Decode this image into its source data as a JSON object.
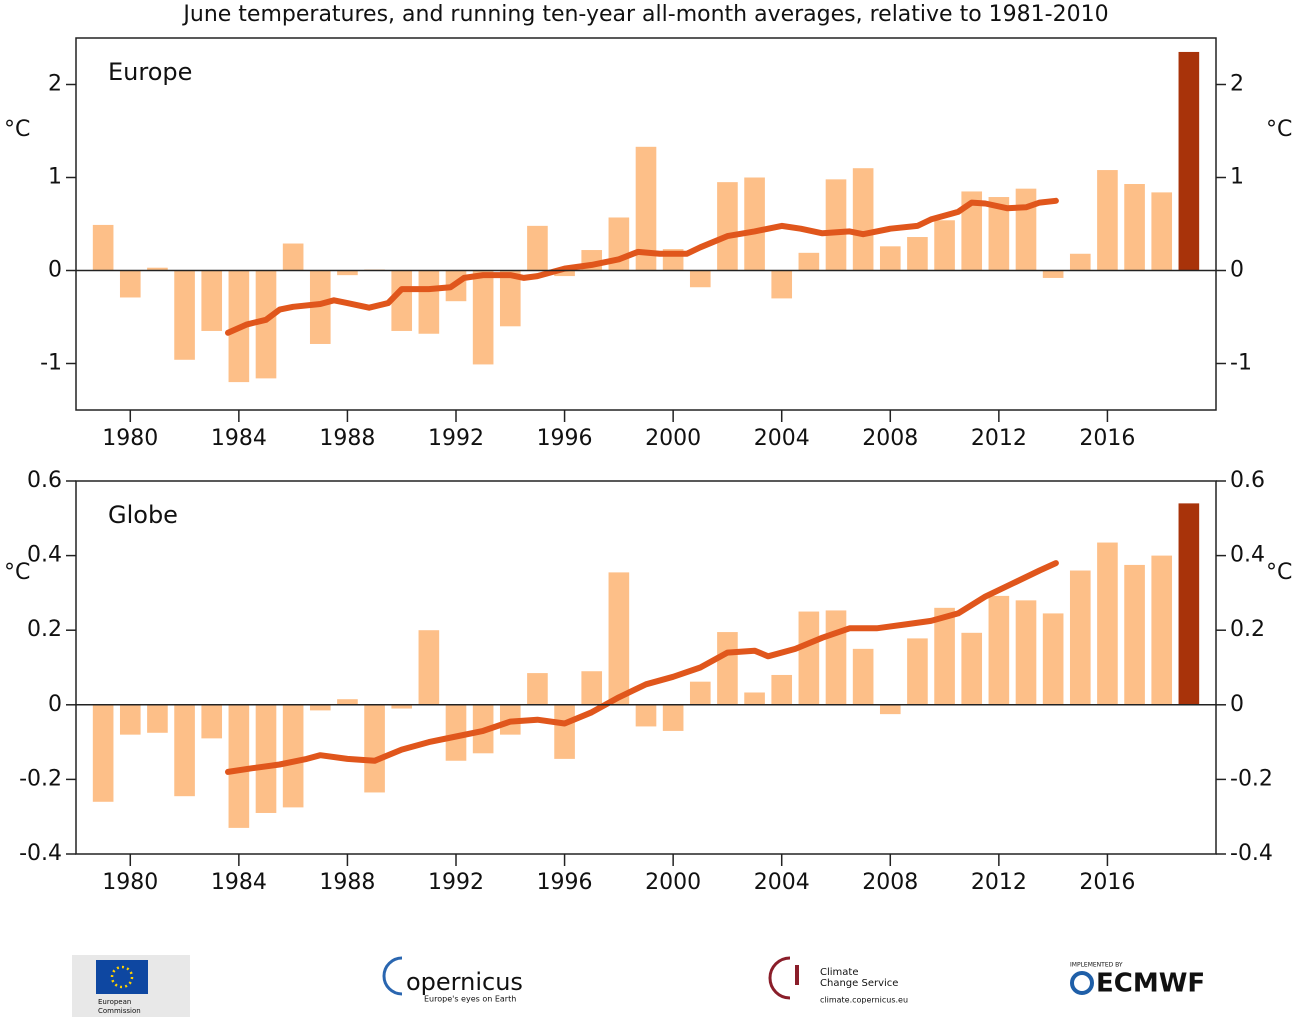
{
  "chart_data": [
    {
      "type": "bar",
      "title": "June temperatures, and running ten-year all-month averages, relative to 1981-2010",
      "label": "Europe",
      "ylabel": "°C",
      "xlim": [
        1978,
        2020
      ],
      "xticks": [
        1980,
        1984,
        1988,
        1992,
        1996,
        2000,
        2004,
        2008,
        2012,
        2016
      ],
      "ylim": [
        -1.5,
        2.5
      ],
      "yticks": [
        -1,
        0,
        1,
        2
      ],
      "series": [
        {
          "type": "bar",
          "color": "#fdbf88",
          "last_color": "#a8330a",
          "x": [
            1979,
            1980,
            1981,
            1982,
            1983,
            1984,
            1985,
            1986,
            1987,
            1988,
            1989,
            1990,
            1991,
            1992,
            1993,
            1994,
            1995,
            1996,
            1997,
            1998,
            1999,
            2000,
            2001,
            2002,
            2003,
            2004,
            2005,
            2006,
            2007,
            2008,
            2009,
            2010,
            2011,
            2012,
            2013,
            2014,
            2015,
            2016,
            2017,
            2018,
            2019
          ],
          "values": [
            0.49,
            -0.29,
            0.03,
            -0.96,
            -0.65,
            -1.2,
            -1.16,
            0.29,
            -0.79,
            -0.05,
            0.01,
            -0.65,
            -0.68,
            -0.33,
            -1.01,
            -0.6,
            0.48,
            -0.06,
            0.22,
            0.57,
            1.33,
            0.23,
            -0.18,
            0.95,
            1.0,
            -0.3,
            0.19,
            0.98,
            1.1,
            0.26,
            0.36,
            0.54,
            0.85,
            0.79,
            0.88,
            -0.08,
            0.18,
            1.08,
            0.93,
            0.84,
            2.35
          ]
        },
        {
          "type": "line",
          "color": "#e0561c",
          "x": [
            1983.6,
            1984.3,
            1985,
            1985.5,
            1986,
            1987,
            1987.5,
            1988,
            1988.8,
            1989.5,
            1990,
            1991,
            1991.8,
            1992.3,
            1993,
            1994,
            1994.5,
            1995,
            1996,
            1997,
            1998,
            1998.7,
            1999.5,
            2000.5,
            2001,
            2002,
            2003,
            2004,
            2004.7,
            2005.5,
            2006.5,
            2007,
            2008,
            2009,
            2009.5,
            2010.5,
            2011,
            2011.5,
            2012.3,
            2013,
            2013.5,
            2014.1
          ],
          "values": [
            -0.67,
            -0.58,
            -0.53,
            -0.42,
            -0.39,
            -0.36,
            -0.32,
            -0.35,
            -0.4,
            -0.35,
            -0.2,
            -0.2,
            -0.18,
            -0.08,
            -0.05,
            -0.05,
            -0.08,
            -0.06,
            0.02,
            0.06,
            0.12,
            0.2,
            0.18,
            0.18,
            0.25,
            0.37,
            0.42,
            0.48,
            0.45,
            0.4,
            0.42,
            0.39,
            0.45,
            0.48,
            0.55,
            0.63,
            0.73,
            0.72,
            0.67,
            0.68,
            0.73,
            0.75
          ]
        }
      ]
    },
    {
      "type": "bar",
      "label": "Globe",
      "ylabel": "°C",
      "xlim": [
        1978,
        2020
      ],
      "xticks": [
        1980,
        1984,
        1988,
        1992,
        1996,
        2000,
        2004,
        2008,
        2012,
        2016
      ],
      "ylim": [
        -0.4,
        0.6
      ],
      "yticks": [
        -0.4,
        -0.2,
        0,
        0.2,
        0.4,
        0.6
      ],
      "series": [
        {
          "type": "bar",
          "color": "#fdbf88",
          "last_color": "#a8330a",
          "x": [
            1979,
            1980,
            1981,
            1982,
            1983,
            1984,
            1985,
            1986,
            1987,
            1988,
            1989,
            1990,
            1991,
            1992,
            1993,
            1994,
            1995,
            1996,
            1997,
            1998,
            1999,
            2000,
            2001,
            2002,
            2003,
            2004,
            2005,
            2006,
            2007,
            2008,
            2009,
            2010,
            2011,
            2012,
            2013,
            2014,
            2015,
            2016,
            2017,
            2018,
            2019
          ],
          "values": [
            -0.26,
            -0.08,
            -0.075,
            -0.245,
            -0.09,
            -0.33,
            -0.29,
            -0.275,
            -0.015,
            0.015,
            -0.235,
            -0.01,
            0.2,
            -0.15,
            -0.13,
            -0.08,
            0.085,
            -0.145,
            0.09,
            0.355,
            -0.058,
            -0.07,
            0.062,
            0.195,
            0.033,
            0.08,
            0.25,
            0.253,
            0.15,
            -0.025,
            0.178,
            0.26,
            0.193,
            0.292,
            0.28,
            0.245,
            0.36,
            0.435,
            0.375,
            0.4,
            0.54
          ]
        },
        {
          "type": "line",
          "color": "#e0561c",
          "x": [
            1983.6,
            1984.5,
            1985.5,
            1986.5,
            1987,
            1988,
            1989,
            1990,
            1991,
            1992,
            1993,
            1994,
            1995,
            1996,
            1997,
            1998,
            1999,
            2000,
            2001,
            2002,
            2003,
            2003.5,
            2004.5,
            2005.5,
            2006.5,
            2007.5,
            2008.5,
            2009.5,
            2010.5,
            2011.5,
            2012.5,
            2013.5,
            2014.1
          ],
          "values": [
            -0.18,
            -0.17,
            -0.16,
            -0.145,
            -0.135,
            -0.145,
            -0.15,
            -0.12,
            -0.1,
            -0.085,
            -0.07,
            -0.045,
            -0.04,
            -0.05,
            -0.02,
            0.02,
            0.055,
            0.075,
            0.1,
            0.14,
            0.145,
            0.13,
            0.15,
            0.18,
            0.205,
            0.205,
            0.215,
            0.225,
            0.245,
            0.29,
            0.325,
            0.36,
            0.38
          ]
        }
      ]
    }
  ],
  "logos": {
    "commission": [
      "European",
      "Commission"
    ],
    "copernicus": [
      "opernicus",
      "Europe's eyes on Earth"
    ],
    "c3s": [
      "Climate",
      "Change Service",
      "climate.copernicus.eu"
    ],
    "ecmwf": [
      "IMPLEMENTED BY",
      "ECMWF"
    ]
  }
}
